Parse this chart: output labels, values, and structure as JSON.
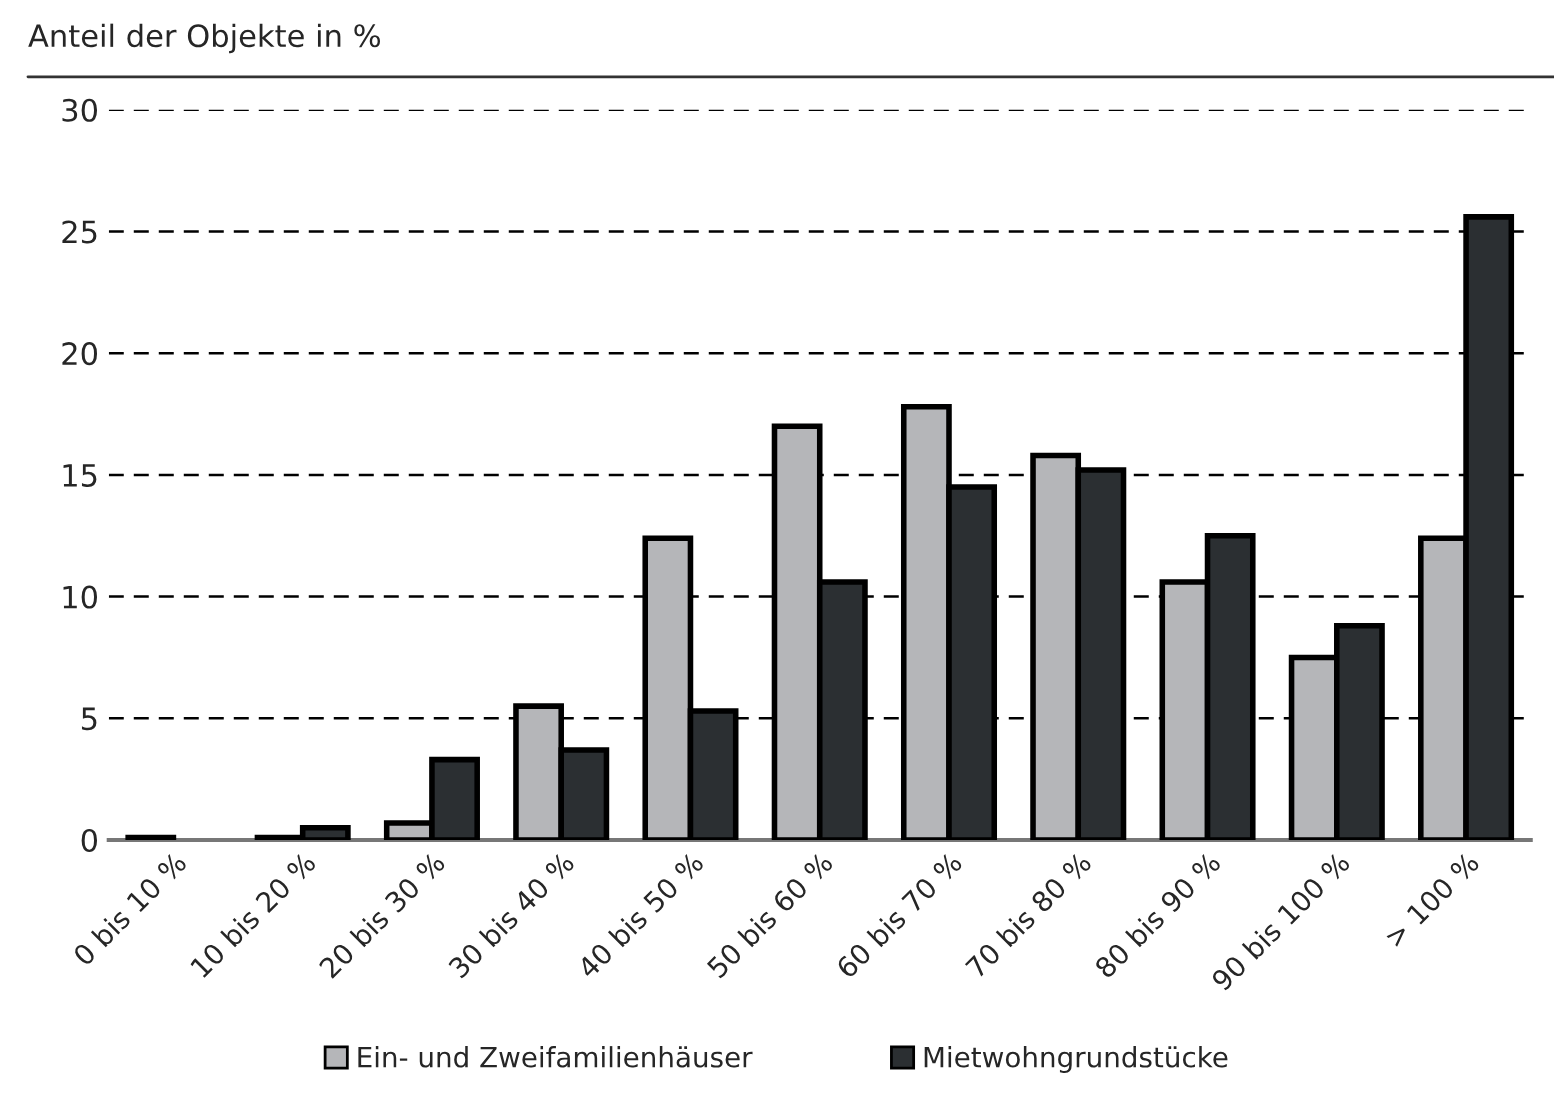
{
  "chart_data": {
    "type": "bar",
    "subtitle": "Anteil der Objekte in %",
    "categories": [
      "0 bis 10 %",
      "10 bis 20 %",
      "20 bis 30 %",
      "30 bis 40 %",
      "40 bis 50 %",
      "50 bis 60 %",
      "60 bis 70 %",
      "70 bis 80 %",
      "80 bis 90 %",
      "90 bis 100 %",
      "> 100 %"
    ],
    "series": [
      {
        "name": "Ein- und Zweifamilienhäuser",
        "color": "#b5b6b9",
        "values": [
          0.1,
          0.1,
          0.7,
          5.5,
          12.4,
          17.0,
          17.8,
          15.8,
          10.6,
          7.5,
          12.4
        ]
      },
      {
        "name": "Mietwohngrundstücke",
        "color": "#2b2f32",
        "values": [
          null,
          0.5,
          3.3,
          3.7,
          5.3,
          10.6,
          14.5,
          15.2,
          12.5,
          8.8,
          25.6
        ]
      }
    ],
    "ylim": [
      0,
      30
    ],
    "yticks": [
      0,
      5,
      10,
      15,
      20,
      25,
      30
    ],
    "grid": "y",
    "legend": "bottom"
  }
}
